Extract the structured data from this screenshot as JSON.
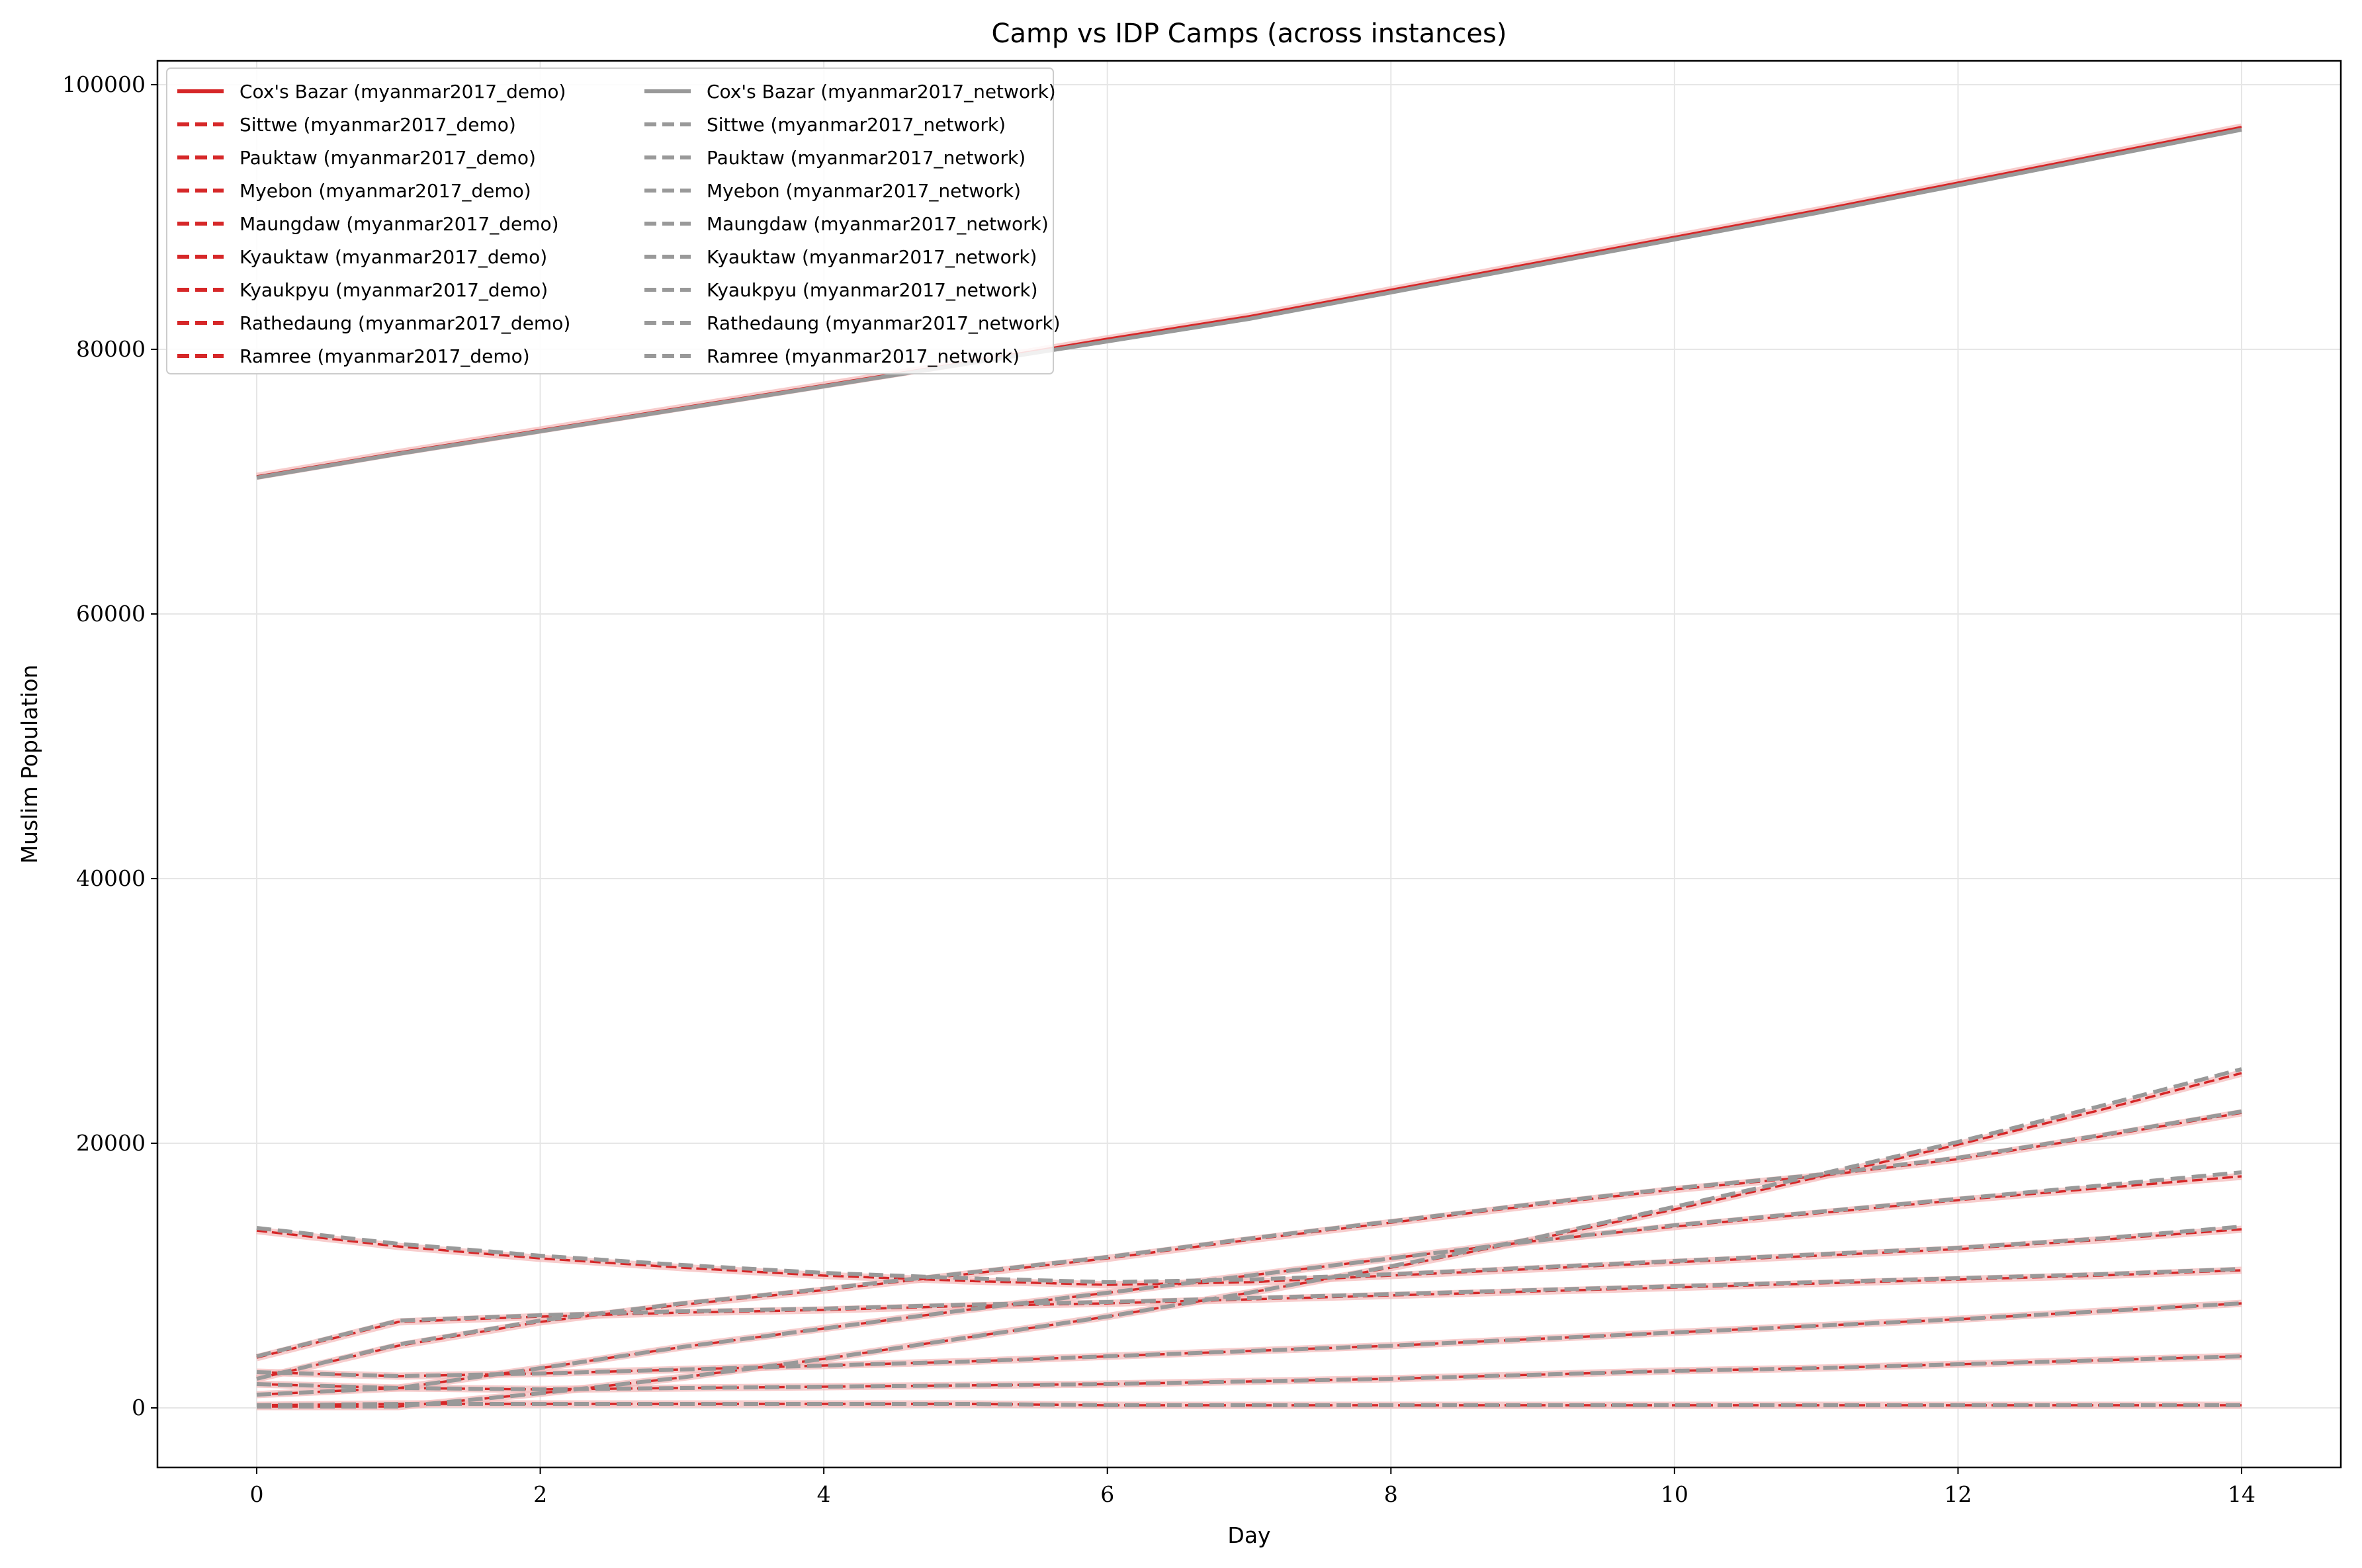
{
  "chart_data": {
    "type": "line",
    "title": "Camp vs IDP Camps (across instances)",
    "xlabel": "Day",
    "ylabel": "Muslim Population",
    "xlim": [
      -0.7,
      14.7
    ],
    "ylim": [
      -4500,
      101800
    ],
    "xticks": [
      0,
      2,
      4,
      6,
      8,
      10,
      12,
      14
    ],
    "yticks": [
      0,
      20000,
      40000,
      60000,
      80000,
      100000
    ],
    "grid": true,
    "legend_position": "top-left",
    "colors": {
      "demo": "#d62728",
      "network": "#999999",
      "band": "#f4b8b8",
      "grid": "#e6e6e6"
    },
    "x": [
      0,
      1,
      2,
      3,
      4,
      5,
      6,
      7,
      8,
      9,
      10,
      11,
      12,
      13,
      14
    ],
    "series": [
      {
        "name": "Cox's Bazar (myanmar2017_demo)",
        "instance": "demo",
        "style": "solid",
        "values": [
          70400,
          72200,
          73900,
          75600,
          77300,
          79000,
          80800,
          82500,
          84500,
          86500,
          88500,
          90500,
          92600,
          94700,
          96800
        ]
      },
      {
        "name": "Sittwe (myanmar2017_demo)",
        "instance": "demo",
        "style": "dashed",
        "values": [
          13400,
          12200,
          11300,
          10600,
          10000,
          9600,
          9300,
          9500,
          10000,
          10500,
          11000,
          11500,
          12000,
          12700,
          13500
        ]
      },
      {
        "name": "Pauktaw (myanmar2017_demo)",
        "instance": "demo",
        "style": "dashed",
        "values": [
          2200,
          4700,
          6500,
          7800,
          8900,
          10100,
          11300,
          12700,
          14000,
          15300,
          16500,
          17500,
          18800,
          20500,
          22300
        ]
      },
      {
        "name": "Myebon (myanmar2017_demo)",
        "instance": "demo",
        "style": "dashed",
        "values": [
          1000,
          1500,
          3000,
          4600,
          6000,
          7400,
          8700,
          10000,
          11300,
          12600,
          13700,
          14700,
          15700,
          16600,
          17500
        ]
      },
      {
        "name": "Maungdaw (myanmar2017_demo)",
        "instance": "demo",
        "style": "dashed",
        "values": [
          100,
          100,
          1100,
          2300,
          3700,
          5300,
          6900,
          8700,
          10600,
          12700,
          15000,
          17400,
          19900,
          22500,
          25300
        ]
      },
      {
        "name": "Kyauktaw (myanmar2017_demo)",
        "instance": "demo",
        "style": "dashed",
        "values": [
          3800,
          6500,
          6900,
          7200,
          7400,
          7700,
          7900,
          8200,
          8500,
          8800,
          9100,
          9400,
          9700,
          10000,
          10400
        ]
      },
      {
        "name": "Kyaukpyu (myanmar2017_demo)",
        "instance": "demo",
        "style": "dashed",
        "values": [
          2700,
          2400,
          2600,
          2900,
          3200,
          3500,
          3900,
          4300,
          4700,
          5200,
          5700,
          6200,
          6700,
          7300,
          7900
        ]
      },
      {
        "name": "Rathedaung (myanmar2017_demo)",
        "instance": "demo",
        "style": "dashed",
        "values": [
          1800,
          1500,
          1400,
          1500,
          1600,
          1700,
          1800,
          2000,
          2200,
          2500,
          2800,
          3000,
          3300,
          3600,
          3900
        ]
      },
      {
        "name": "Ramree (myanmar2017_demo)",
        "instance": "demo",
        "style": "dashed",
        "values": [
          200,
          300,
          300,
          300,
          300,
          300,
          200,
          200,
          200,
          200,
          200,
          200,
          200,
          200,
          200
        ]
      },
      {
        "name": "Cox's Bazar (myanmar2017_network)",
        "instance": "network",
        "style": "solid",
        "values": [
          70300,
          72100,
          73800,
          75500,
          77200,
          78900,
          80600,
          82300,
          84300,
          86300,
          88300,
          90300,
          92400,
          94500,
          96600
        ]
      },
      {
        "name": "Sittwe (myanmar2017_network)",
        "instance": "network",
        "style": "dashed",
        "values": [
          13600,
          12400,
          11500,
          10800,
          10200,
          9800,
          9500,
          9700,
          10100,
          10600,
          11100,
          11600,
          12100,
          12800,
          13700
        ]
      },
      {
        "name": "Pauktaw (myanmar2017_network)",
        "instance": "network",
        "style": "dashed",
        "values": [
          2200,
          4800,
          6600,
          7900,
          9000,
          10200,
          11400,
          12800,
          14100,
          15400,
          16600,
          17600,
          18900,
          20600,
          22400
        ]
      },
      {
        "name": "Myebon (myanmar2017_network)",
        "instance": "network",
        "style": "dashed",
        "values": [
          1000,
          1500,
          3000,
          4600,
          6000,
          7400,
          8700,
          10000,
          11300,
          12600,
          13800,
          14800,
          15800,
          16800,
          17800
        ]
      },
      {
        "name": "Maungdaw (myanmar2017_network)",
        "instance": "network",
        "style": "dashed",
        "values": [
          100,
          100,
          1100,
          2300,
          3700,
          5300,
          6900,
          8700,
          10700,
          12800,
          15200,
          17600,
          20100,
          22800,
          25600
        ]
      },
      {
        "name": "Kyauktaw (myanmar2017_network)",
        "instance": "network",
        "style": "dashed",
        "values": [
          3900,
          6600,
          7000,
          7300,
          7500,
          7800,
          8000,
          8300,
          8600,
          8900,
          9200,
          9500,
          9800,
          10100,
          10500
        ]
      },
      {
        "name": "Kyaukpyu (myanmar2017_network)",
        "instance": "network",
        "style": "dashed",
        "values": [
          2700,
          2400,
          2600,
          2900,
          3200,
          3500,
          3900,
          4300,
          4700,
          5200,
          5700,
          6200,
          6700,
          7300,
          7900
        ]
      },
      {
        "name": "Rathedaung (myanmar2017_network)",
        "instance": "network",
        "style": "dashed",
        "values": [
          1800,
          1500,
          1400,
          1500,
          1600,
          1700,
          1800,
          2000,
          2200,
          2500,
          2800,
          3000,
          3300,
          3600,
          3900
        ]
      },
      {
        "name": "Ramree (myanmar2017_network)",
        "instance": "network",
        "style": "dashed",
        "values": [
          200,
          300,
          300,
          300,
          300,
          300,
          200,
          200,
          200,
          200,
          200,
          200,
          200,
          200,
          200
        ]
      }
    ]
  }
}
